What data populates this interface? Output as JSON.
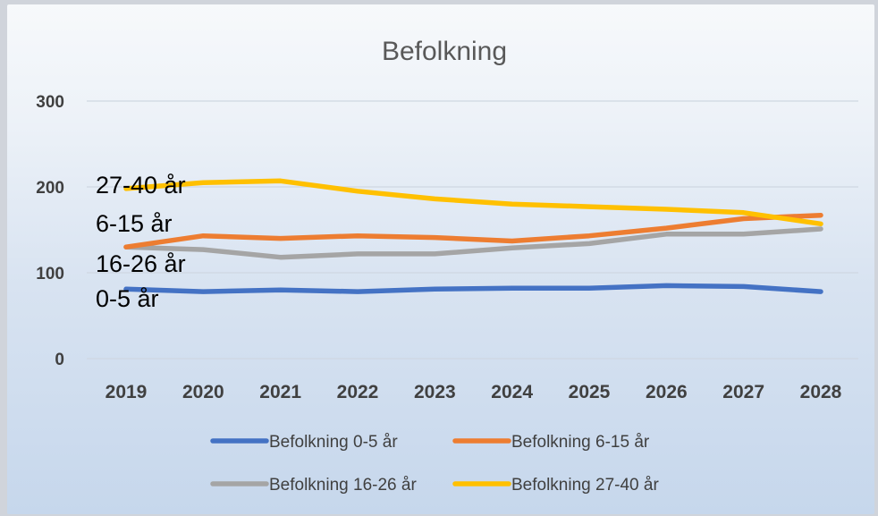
{
  "chart_data": {
    "type": "line",
    "title": "Befolkning",
    "xlabel": "",
    "ylabel": "",
    "x": [
      "2019",
      "2020",
      "2021",
      "2022",
      "2023",
      "2024",
      "2025",
      "2026",
      "2027",
      "2028"
    ],
    "ylim": [
      0,
      300
    ],
    "yticks": [
      "0",
      "100",
      "200",
      "300"
    ],
    "grid": true,
    "legend_position": "bottom",
    "series": [
      {
        "name": "Befolkning 0-5 år",
        "color": "#4472c4",
        "values": [
          81,
          78,
          80,
          78,
          81,
          82,
          82,
          85,
          84,
          78
        ]
      },
      {
        "name": "Befolkning 6-15 år",
        "color": "#ed7d31",
        "values": [
          130,
          143,
          140,
          143,
          141,
          137,
          143,
          152,
          163,
          167
        ]
      },
      {
        "name": "Befolkning 16-26 år",
        "color": "#a5a5a5",
        "values": [
          130,
          127,
          118,
          122,
          122,
          129,
          134,
          145,
          145,
          151
        ]
      },
      {
        "name": "Befolkning 27-40 år",
        "color": "#ffc000",
        "values": [
          198,
          205,
          207,
          195,
          186,
          180,
          177,
          174,
          170,
          157
        ]
      }
    ],
    "annotations": [
      "27-40 år",
      "6-15 år",
      "16-26 år",
      "0-5 år"
    ]
  }
}
